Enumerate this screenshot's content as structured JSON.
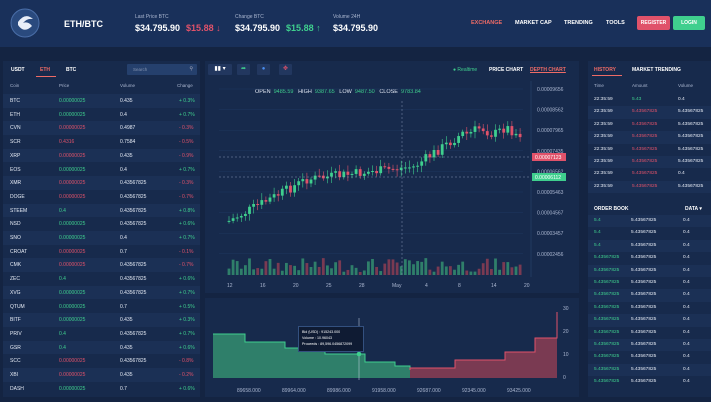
{
  "header": {
    "pair": "ETH/BTC",
    "stats": [
      {
        "label": "Last Price BTC",
        "value": "$34.795.90",
        "change": "$15.88 ↓",
        "dir": "down"
      },
      {
        "label": "Change BTC",
        "value": "$34.795.90",
        "change": "$15.88 ↑",
        "dir": "up"
      },
      {
        "label": "Volume 24H",
        "value": "$34.795.90",
        "change": "",
        "dir": "up"
      }
    ],
    "nav": [
      "EXCHANGE",
      "MARKET CAP",
      "TRENDING",
      "TOOLS"
    ],
    "register": "REGISTER",
    "login": "LOGIN"
  },
  "market": {
    "tabs": [
      "USDT",
      "ETH",
      "BTC"
    ],
    "search_placeholder": "Search",
    "columns": [
      "Coin",
      "Price",
      "Volume",
      "Change"
    ],
    "rows": [
      [
        "BTC",
        "0.00000025",
        "0.435",
        0.3
      ],
      [
        "ETH",
        "0.00000025",
        "0.4",
        0.7
      ],
      [
        "CVN",
        "0.00000025",
        "0.4987",
        -0.3
      ],
      [
        "SCR",
        "0.4316",
        "0.7584",
        -0.5
      ],
      [
        "XRP",
        "0.00000025",
        "0.435",
        -0.9
      ],
      [
        "EOS",
        "0.00000025",
        "0.4",
        0.7
      ],
      [
        "XMR",
        "0.00000025",
        "0.43567825",
        -0.3
      ],
      [
        "DOGE",
        "0.00000025",
        "0.43567825",
        -0.7
      ],
      [
        "STEEM",
        "0.4",
        "0.43567825",
        0.8
      ],
      [
        "NSD",
        "0.00000025",
        "0.43567825",
        0.6
      ],
      [
        "SNO",
        "0.00000025",
        "0.4",
        0.7
      ],
      [
        "CROAT",
        "0.00000025",
        "0.7",
        -0.1
      ],
      [
        "CMK",
        "0.00000025",
        "0.43567825",
        -0.7
      ],
      [
        "ZEC",
        "0.4",
        "0.43567825",
        0.6
      ],
      [
        "XVG",
        "0.00000025",
        "0.43567825",
        0.7
      ],
      [
        "QTUM",
        "0.00000025",
        "0.7",
        0.5
      ],
      [
        "BITF",
        "0.00000025",
        "0.435",
        0.3
      ],
      [
        "PRIV",
        "0.4",
        "0.43567825",
        0.7
      ],
      [
        "GSR",
        "0.4",
        "0.435",
        0.6
      ],
      [
        "SCC",
        "0.00000025",
        "0.43567825",
        -0.8
      ],
      [
        "XBI",
        "0.00000025",
        "0.435",
        -0.2
      ],
      [
        "DASH",
        "0.00000025",
        "0.7",
        0.6
      ]
    ]
  },
  "chart_data": {
    "type": "candlestick",
    "ohlc": {
      "open": "9485.59",
      "high": "9387.65",
      "low": "9487.50",
      "close": "9783.84"
    },
    "y_ticks": [
      "0.00009656",
      "0.00008562",
      "0.00007965",
      "0.00007435",
      "0.00006562",
      "0.00005463",
      "0.00004567",
      "0.00003457",
      "0.00002456"
    ],
    "x_ticks": [
      "12",
      "16",
      "20",
      "25",
      "28",
      "May",
      "4",
      "8",
      "14",
      "20"
    ],
    "price_tags": [
      {
        "value": "0.00007123",
        "color": "#e0526a"
      },
      {
        "value": "0.00006112",
        "color": "#3fcf8e"
      }
    ],
    "ylim": [
      2e-05,
      0.0001
    ]
  },
  "chart_toolbar": {
    "realtime": "Realtime",
    "tabs": [
      "PRICE CHART",
      "DEPTH CHART"
    ]
  },
  "depth_chart": {
    "x_ticks": [
      "89658.000",
      "89964.000",
      "89986.000",
      "91958.000",
      "92687.000",
      "92345.000",
      "93425.000"
    ],
    "y_ticks": [
      "30",
      "20",
      "10",
      "0"
    ],
    "tooltip": {
      "bid": "Bid (USD) :  915243.000",
      "volume": "Volume :  10.96043",
      "proceeds": "Proceeds :  89,596.0456872099"
    }
  },
  "history": {
    "tabs": [
      "HISTORY",
      "MARKET TRENDING"
    ],
    "columns": [
      "Time",
      "Amount",
      "Volume"
    ],
    "rows": [
      [
        "22:35:59",
        "5.43",
        "0.4",
        "up"
      ],
      [
        "22:35:59",
        "5.43567825",
        "5.43567825",
        "down"
      ],
      [
        "22:35:59",
        "5.43567825",
        "5.43567825",
        "down"
      ],
      [
        "22:35:59",
        "5.43567825",
        "5.43567825",
        "down"
      ],
      [
        "22:35:59",
        "5.43567825",
        "5.43567825",
        "down"
      ],
      [
        "22:35:59",
        "5.43567825",
        "5.43567825",
        "down"
      ],
      [
        "22:35:59",
        "5.43567825",
        "0.4",
        "down"
      ],
      [
        "22:35:59",
        "5.43567825",
        "5.43567825",
        "down"
      ]
    ]
  },
  "orderbook": {
    "title": "ORDER BOOK",
    "data_label": "DATA",
    "rows": [
      [
        "5.4",
        "5.43567825",
        "0.4"
      ],
      [
        "5.4",
        "5.43567825",
        "0.4"
      ],
      [
        "5.4",
        "5.43567825",
        "0.4"
      ],
      [
        "5.43567825",
        "5.43567825",
        "0.4"
      ],
      [
        "5.43567825",
        "5.43567825",
        "0.4"
      ],
      [
        "5.43567825",
        "5.43567825",
        "0.4"
      ],
      [
        "5.43567825",
        "5.43567825",
        "0.4"
      ],
      [
        "5.43567825",
        "5.43567825",
        "0.4"
      ],
      [
        "5.43567825",
        "5.43567825",
        "0.4"
      ],
      [
        "5.43567825",
        "5.43567825",
        "0.4"
      ],
      [
        "5.43567825",
        "5.43567825",
        "0.4"
      ],
      [
        "5.43567825",
        "5.43567825",
        "0.4"
      ],
      [
        "5.43567825",
        "5.43567825",
        "0.4"
      ],
      [
        "5.43567825",
        "5.43567825",
        "0.4"
      ]
    ]
  }
}
